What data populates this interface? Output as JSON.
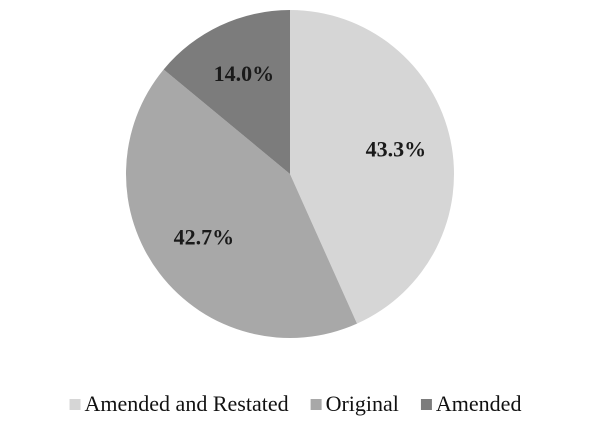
{
  "chart_data": {
    "type": "pie",
    "categories": [
      "Amended and Restated",
      "Original",
      "Amended"
    ],
    "values": [
      43.3,
      42.7,
      14.0
    ],
    "value_labels": [
      "43.3%",
      "42.7%",
      "14.0%"
    ],
    "colors": [
      "#d6d6d6",
      "#a8a8a8",
      "#7c7c7c"
    ],
    "legend": "bottom"
  }
}
